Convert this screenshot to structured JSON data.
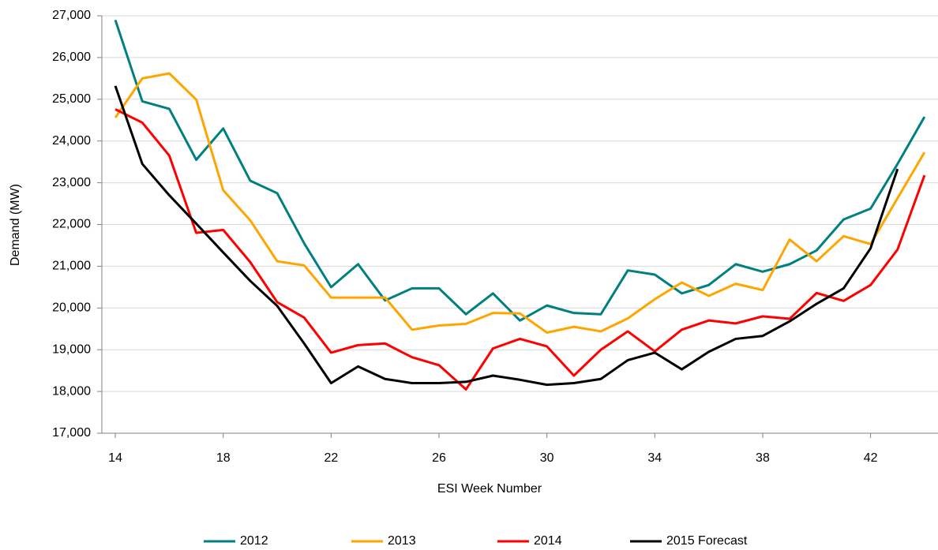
{
  "chart_data": {
    "type": "line",
    "x_label": "ESI Week Number",
    "y_label": "Demand (MW)",
    "x": [
      14,
      15,
      16,
      17,
      18,
      19,
      20,
      21,
      22,
      23,
      24,
      25,
      26,
      27,
      28,
      29,
      30,
      31,
      32,
      33,
      34,
      35,
      36,
      37,
      38,
      39,
      40,
      41,
      42,
      43,
      44
    ],
    "series": [
      {
        "name": "2012",
        "color": "#008080",
        "values": [
          26900,
          24950,
          24770,
          23550,
          24300,
          23050,
          22750,
          21550,
          20500,
          21050,
          20180,
          20470,
          20470,
          19850,
          20350,
          19700,
          20060,
          19880,
          19850,
          20900,
          20800,
          20350,
          20550,
          21050,
          20870,
          21050,
          21380,
          22120,
          22380,
          23450,
          24580
        ]
      },
      {
        "name": "2013",
        "color": "#ffa500",
        "values": [
          24560,
          25500,
          25620,
          24990,
          22820,
          22100,
          21120,
          21020,
          20250,
          20250,
          20250,
          19480,
          19580,
          19620,
          19880,
          19870,
          19410,
          19550,
          19440,
          19750,
          20210,
          20610,
          20290,
          20580,
          20430,
          21640,
          21120,
          21720,
          21530,
          22630,
          23730
        ]
      },
      {
        "name": "2014",
        "color": "#ff0000",
        "values": [
          24760,
          24440,
          23650,
          21800,
          21870,
          21100,
          20140,
          19770,
          18930,
          19110,
          19150,
          18820,
          18630,
          18050,
          19030,
          19260,
          19080,
          18380,
          19000,
          19440,
          18960,
          19480,
          19700,
          19630,
          19800,
          19740,
          20360,
          20170,
          20550,
          21400,
          23180
        ]
      },
      {
        "name": "2015 Forecast",
        "color": "#000000",
        "values": [
          25320,
          23450,
          22700,
          22020,
          21330,
          20650,
          20050,
          19150,
          18200,
          18600,
          18300,
          18200,
          18200,
          18230,
          18380,
          18280,
          18160,
          18200,
          18300,
          18750,
          18930,
          18530,
          18950,
          19260,
          19330,
          19680,
          20100,
          20470,
          21430,
          23330,
          null
        ]
      }
    ],
    "xlim": [
      13.5,
      44.5
    ],
    "xticks": [
      14,
      18,
      22,
      26,
      30,
      34,
      38,
      42
    ],
    "ylim": [
      17000,
      27000
    ],
    "yticks": [
      {
        "value": 17000,
        "label": "17,000"
      },
      {
        "value": 18000,
        "label": "18,000"
      },
      {
        "value": 19000,
        "label": "19,000"
      },
      {
        "value": 20000,
        "label": "20,000"
      },
      {
        "value": 21000,
        "label": "21,000"
      },
      {
        "value": 22000,
        "label": "22,000"
      },
      {
        "value": 23000,
        "label": "23,000"
      },
      {
        "value": 24000,
        "label": "24,000"
      },
      {
        "value": 25000,
        "label": "25,000"
      },
      {
        "value": 26000,
        "label": "26,000"
      },
      {
        "value": 27000,
        "label": "27,000"
      }
    ],
    "grid": true,
    "legend": "bottom"
  }
}
